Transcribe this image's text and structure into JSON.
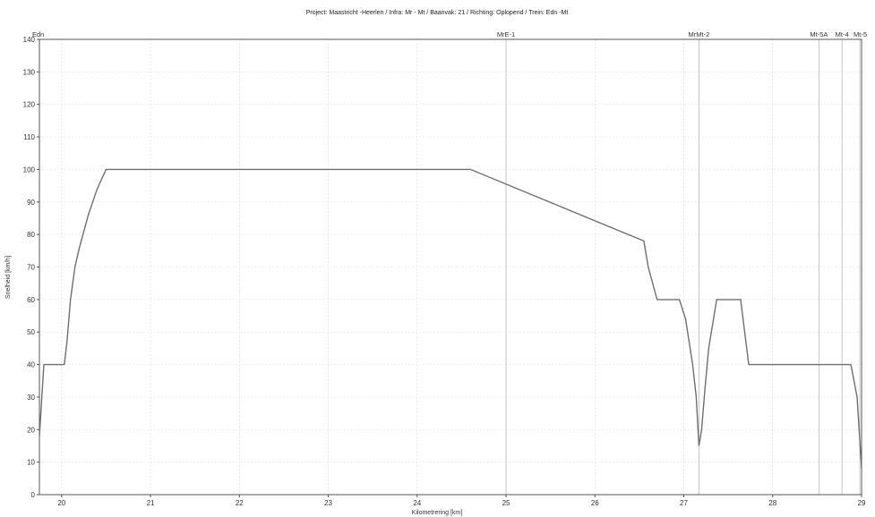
{
  "chart_data": {
    "type": "line",
    "title": "Project: Maastricht -Heerlen / Infra: Mr - Mt / Baanvak: 21 / Richting: Oplopend / Trein: Edn -Mt",
    "xlabel": "Kilometrering [km]",
    "ylabel": "Snelheid [km/h]",
    "xlim": [
      19.75,
      29.0
    ],
    "ylim": [
      0,
      140
    ],
    "x_ticks": [
      "20",
      "21",
      "22",
      "23",
      "24",
      "25",
      "26",
      "27",
      "28",
      "29"
    ],
    "y_ticks": [
      "0",
      "10",
      "20",
      "30",
      "40",
      "50",
      "60",
      "70",
      "80",
      "90",
      "100",
      "110",
      "120",
      "130",
      "140"
    ],
    "grid": true,
    "stations": [
      {
        "name": "Edn",
        "km": 19.75
      },
      {
        "name": "MrE-1",
        "km": 25.0
      },
      {
        "name": "MrMt-2",
        "km": 27.17
      },
      {
        "name": "Mt-5A",
        "km": 28.52
      },
      {
        "name": "Mt-4",
        "km": 28.78
      },
      {
        "name": "Mt-5",
        "km": 28.98
      }
    ],
    "series": [
      {
        "x": [
          19.75,
          19.8,
          20.03,
          20.06,
          20.1,
          20.15,
          20.2,
          20.3,
          20.4,
          20.5,
          21.5,
          24.6,
          26.55,
          26.6,
          26.7,
          26.95,
          27.02,
          27.1,
          27.14,
          27.17,
          27.2,
          27.24,
          27.28,
          27.37,
          27.64,
          27.73,
          28.53,
          28.88,
          28.95,
          29.0
        ],
        "y": [
          18,
          40,
          40,
          47,
          60,
          70,
          76,
          86,
          94,
          100,
          100,
          100,
          78,
          70,
          60,
          60,
          54,
          40,
          30,
          15,
          20,
          33,
          45,
          60,
          60,
          40,
          40,
          40,
          30,
          8
        ]
      }
    ]
  }
}
